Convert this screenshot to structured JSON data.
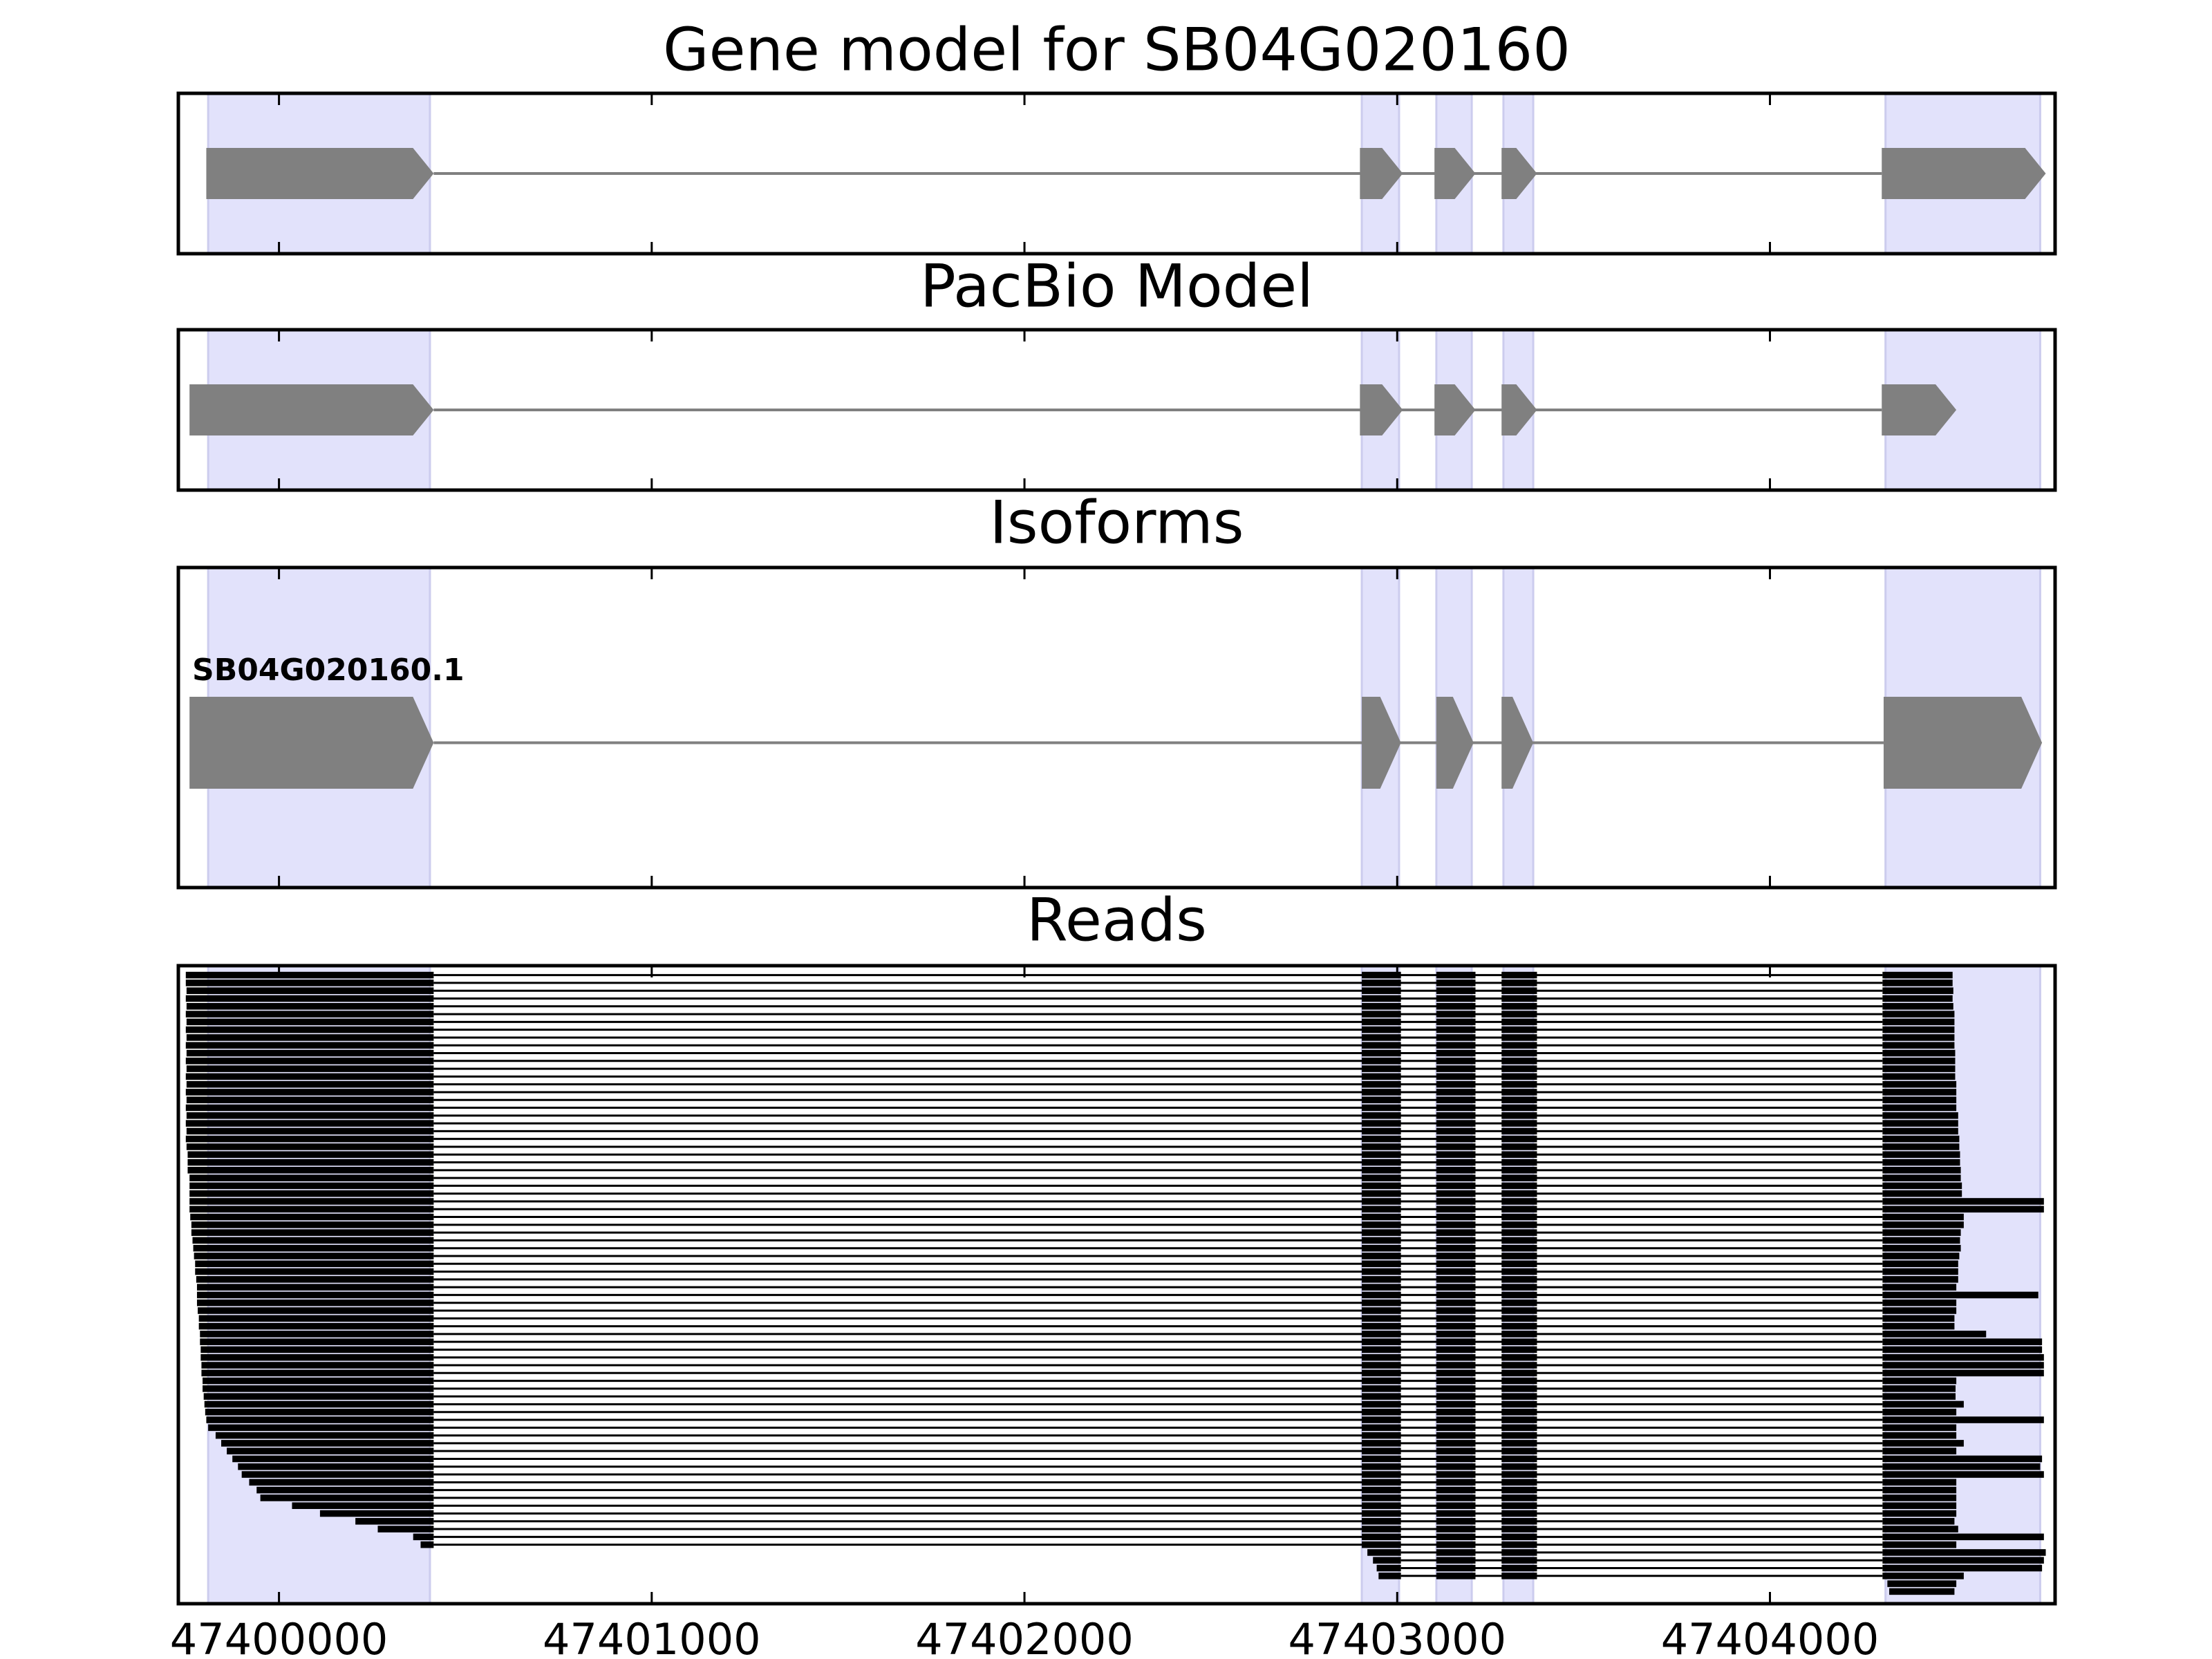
{
  "highlight_color": "#e2e2fb",
  "highlight_regions": [
    [
      47399810,
      47400405
    ],
    [
      47402905,
      47403005
    ],
    [
      47403105,
      47403200
    ],
    [
      47403285,
      47403365
    ],
    [
      47404310,
      47404725
    ]
  ],
  "chart_data": [
    {
      "type": "gene-track",
      "title": "Gene model for SB04G020160",
      "color": "#808080",
      "exons": [
        [
          47399805,
          47400415
        ],
        [
          47402900,
          47403015
        ],
        [
          47403100,
          47403210
        ],
        [
          47403280,
          47403375
        ],
        [
          47404300,
          47404740
        ]
      ]
    },
    {
      "type": "gene-track",
      "title": "PacBio Model",
      "color": "#808080",
      "exons": [
        [
          47399760,
          47400415
        ],
        [
          47402900,
          47403015
        ],
        [
          47403100,
          47403210
        ],
        [
          47403280,
          47403375
        ],
        [
          47404300,
          47404500
        ]
      ]
    },
    {
      "type": "gene-track",
      "title": "Isoforms",
      "color": "#808080",
      "label": "SB04G020160.1",
      "exons": [
        [
          47399760,
          47400415
        ],
        [
          47402905,
          47403010
        ],
        [
          47403105,
          47403205
        ],
        [
          47403280,
          47403365
        ],
        [
          47404305,
          47404730
        ]
      ]
    },
    {
      "type": "reads",
      "title": "Reads",
      "color": "#000000",
      "xlim": [
        47399730,
        47404765
      ],
      "xticks": [
        47400000,
        47401000,
        47402000,
        47403000,
        47404000
      ],
      "first_exon_end": 47400415,
      "last_exon_start": 47404302,
      "exons": [
        [
          47402905,
          47403010
        ],
        [
          47403105,
          47403210
        ],
        [
          47403280,
          47403375
        ]
      ],
      "reads": [
        [
          47399750,
          47404490
        ],
        [
          47399750,
          47404490
        ],
        [
          47399752,
          47404492
        ],
        [
          47399750,
          47404490
        ],
        [
          47399752,
          47404492
        ],
        [
          47399750,
          47404495
        ],
        [
          47399752,
          47404495
        ],
        [
          47399750,
          47404495
        ],
        [
          47399752,
          47404495
        ],
        [
          47399750,
          47404495
        ],
        [
          47399752,
          47404497
        ],
        [
          47399750,
          47404497
        ],
        [
          47399752,
          47404497
        ],
        [
          47399750,
          47404497
        ],
        [
          47399752,
          47404500
        ],
        [
          47399750,
          47404500
        ],
        [
          47399752,
          47404500
        ],
        [
          47399750,
          47404500
        ],
        [
          47399752,
          47404505
        ],
        [
          47399750,
          47404505
        ],
        [
          47399752,
          47404505
        ],
        [
          47399750,
          47404508
        ],
        [
          47399752,
          47404508
        ],
        [
          47399755,
          47404510
        ],
        [
          47399755,
          47404510
        ],
        [
          47399755,
          47404512
        ],
        [
          47399760,
          47404512
        ],
        [
          47399760,
          47404515
        ],
        [
          47399760,
          47404515
        ],
        [
          47399760,
          47404735
        ],
        [
          47399760,
          47404735
        ],
        [
          47399762,
          47404520
        ],
        [
          47399765,
          47404520
        ],
        [
          47399765,
          47404512
        ],
        [
          47399768,
          47404510
        ],
        [
          47399770,
          47404512
        ],
        [
          47399772,
          47404508
        ],
        [
          47399775,
          47404505
        ],
        [
          47399775,
          47404505
        ],
        [
          47399778,
          47404505
        ],
        [
          47399780,
          47404500
        ],
        [
          47399780,
          47404720
        ],
        [
          47399780,
          47404500
        ],
        [
          47399782,
          47404500
        ],
        [
          47399785,
          47404495
        ],
        [
          47399785,
          47404495
        ],
        [
          47399788,
          47404580
        ],
        [
          47399788,
          47404730
        ],
        [
          47399790,
          47404730
        ],
        [
          47399790,
          47404735
        ],
        [
          47399792,
          47404735
        ],
        [
          47399792,
          47404735
        ],
        [
          47399795,
          47404500
        ],
        [
          47399795,
          47404498
        ],
        [
          47399798,
          47404498
        ],
        [
          47399800,
          47404520
        ],
        [
          47399802,
          47404500
        ],
        [
          47399805,
          47404735
        ],
        [
          47399810,
          47404500
        ],
        [
          47399830,
          47404500
        ],
        [
          47399845,
          47404520
        ],
        [
          47399860,
          47404500
        ],
        [
          47399875,
          47404730
        ],
        [
          47399890,
          47404725
        ],
        [
          47399900,
          47404735
        ],
        [
          47399920,
          47404500
        ],
        [
          47399940,
          47404500
        ],
        [
          47399950,
          47404500
        ],
        [
          47400035,
          47404500
        ],
        [
          47400110,
          47404500
        ],
        [
          47400205,
          47404495
        ],
        [
          47400265,
          47404505
        ],
        [
          47400360,
          47404735
        ],
        [
          47400380,
          47404500
        ],
        [
          47402920,
          47404740
        ],
        [
          47402935,
          47404735
        ],
        [
          47402945,
          47404730
        ],
        [
          47402950,
          47404520
        ],
        [
          47404315,
          47404500
        ],
        [
          47404320,
          47404495
        ]
      ]
    }
  ]
}
